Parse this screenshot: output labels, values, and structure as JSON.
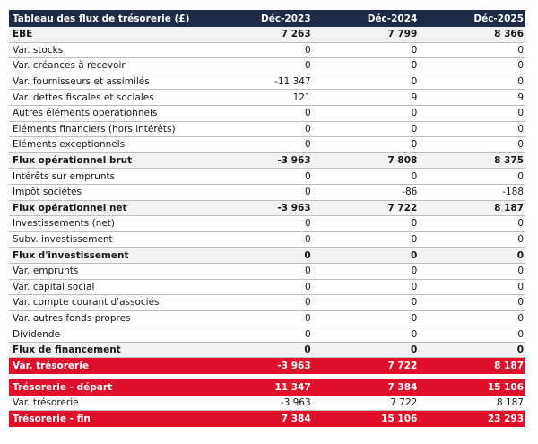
{
  "columns": [
    "Tableau des flux de trésorerie (£)",
    "Déc-2023",
    "Déc-2024",
    "Déc-2025"
  ],
  "rows": [
    {
      "label": "EBE",
      "v": [
        "7 263",
        "7 799",
        "8 366"
      ],
      "style": "bold"
    },
    {
      "label": "Var. stocks",
      "v": [
        "0",
        "0",
        "0"
      ],
      "style": ""
    },
    {
      "label": "Var. créances à recevoir",
      "v": [
        "0",
        "0",
        "0"
      ],
      "style": ""
    },
    {
      "label": "Var. fournisseurs et assimilés",
      "v": [
        "-11 347",
        "0",
        "0"
      ],
      "style": ""
    },
    {
      "label": "Var. dettes fiscales et sociales",
      "v": [
        "121",
        "9",
        "9"
      ],
      "style": ""
    },
    {
      "label": "Autres éléments opérationnels",
      "v": [
        "0",
        "0",
        "0"
      ],
      "style": ""
    },
    {
      "label": "Eléments financiers (hors intérêts)",
      "v": [
        "0",
        "0",
        "0"
      ],
      "style": ""
    },
    {
      "label": "Eléments exceptionnels",
      "v": [
        "0",
        "0",
        "0"
      ],
      "style": ""
    },
    {
      "label": "Flux opérationnel brut",
      "v": [
        "-3 963",
        "7 808",
        "8 375"
      ],
      "style": "bold"
    },
    {
      "label": "Intérêts sur emprunts",
      "v": [
        "0",
        "0",
        "0"
      ],
      "style": ""
    },
    {
      "label": "Impôt sociétés",
      "v": [
        "0",
        "-86",
        "-188"
      ],
      "style": ""
    },
    {
      "label": "Flux opérationnel net",
      "v": [
        "-3 963",
        "7 722",
        "8 187"
      ],
      "style": "bold"
    },
    {
      "label": "Investissements (net)",
      "v": [
        "0",
        "0",
        "0"
      ],
      "style": ""
    },
    {
      "label": "Subv. investissement",
      "v": [
        "0",
        "0",
        "0"
      ],
      "style": ""
    },
    {
      "label": "Flux d'investissement",
      "v": [
        "0",
        "0",
        "0"
      ],
      "style": "bold"
    },
    {
      "label": "Var. emprunts",
      "v": [
        "0",
        "0",
        "0"
      ],
      "style": ""
    },
    {
      "label": "Var. capital social",
      "v": [
        "0",
        "0",
        "0"
      ],
      "style": ""
    },
    {
      "label": "Var. compte courant d'associés",
      "v": [
        "0",
        "0",
        "0"
      ],
      "style": ""
    },
    {
      "label": "Var. autres fonds propres",
      "v": [
        "0",
        "0",
        "0"
      ],
      "style": ""
    },
    {
      "label": "Dividende",
      "v": [
        "0",
        "0",
        "0"
      ],
      "style": ""
    },
    {
      "label": "Flux de financement",
      "v": [
        "0",
        "0",
        "0"
      ],
      "style": "bold"
    },
    {
      "label": "Var. trésorerie",
      "v": [
        "-3 963",
        "7 722",
        "8 187"
      ],
      "style": "red"
    },
    {
      "label": "",
      "v": [
        "",
        "",
        ""
      ],
      "style": "gap"
    },
    {
      "label": "Trésorerie - départ",
      "v": [
        "11 347",
        "7 384",
        "15 106"
      ],
      "style": "red"
    },
    {
      "label": "Var. trésorerie",
      "v": [
        "-3 963",
        "7 722",
        "8 187"
      ],
      "style": ""
    },
    {
      "label": "Trésorerie - fin",
      "v": [
        "7 384",
        "15 106",
        "23 293"
      ],
      "style": "red"
    }
  ],
  "colors": {
    "header": "#1f2a44",
    "highlight": "#e0102a",
    "subtotal": "#f2f2f2"
  }
}
